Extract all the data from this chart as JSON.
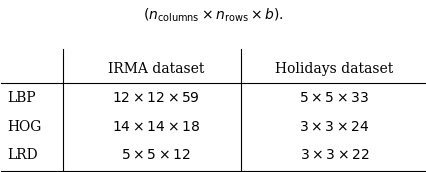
{
  "subtitle": "$(n_{\\mathrm{columns}} \\times n_{\\mathrm{rows}} \\times b).$",
  "col_headers": [
    "",
    "IRMA dataset",
    "Holidays dataset"
  ],
  "rows": [
    [
      "LBP",
      "$12 \\times 12 \\times 59$",
      "$5 \\times 5 \\times 33$"
    ],
    [
      "HOG",
      "$14 \\times 14 \\times 18$",
      "$3 \\times 3 \\times 24$"
    ],
    [
      "LRD",
      "$5 \\times 5 \\times 12$",
      "$3 \\times 3 \\times 22$"
    ]
  ],
  "background_color": "#ffffff",
  "font_size": 10
}
